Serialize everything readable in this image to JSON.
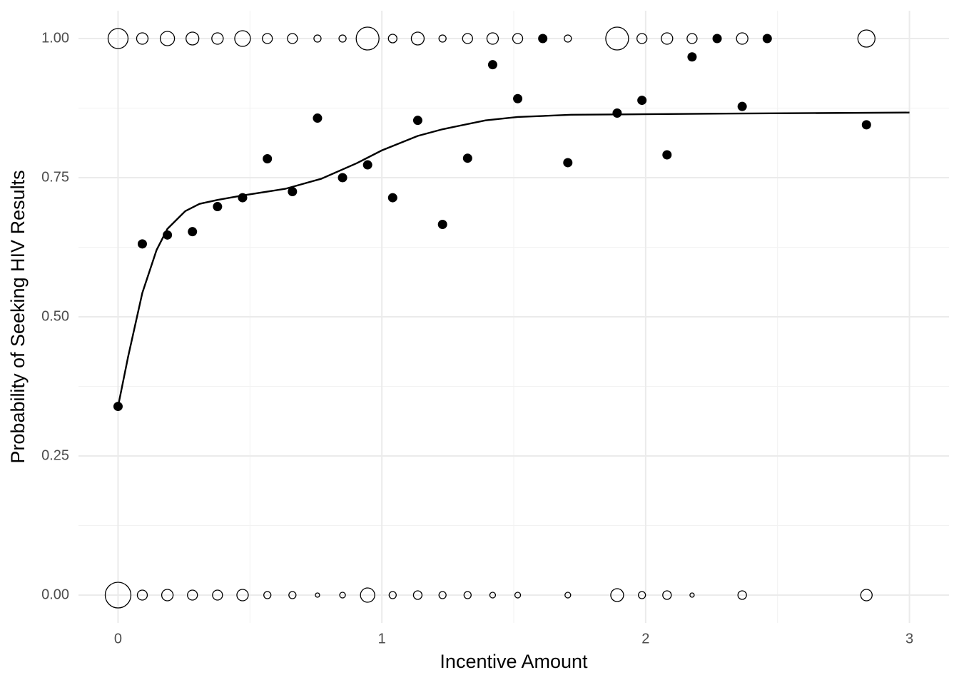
{
  "chart_data": {
    "type": "scatter",
    "x_label": "Incentive Amount",
    "y_label": "Probability of Seeking HIV Results",
    "xlim": [
      -0.15,
      3.15
    ],
    "ylim": [
      -0.05,
      1.05
    ],
    "xticks": [
      0,
      1,
      2,
      3
    ],
    "yticks": [
      {
        "value": 0,
        "label": "0.00"
      },
      {
        "value": 0.25,
        "label": "0.25"
      },
      {
        "value": 0.5,
        "label": "0.50"
      },
      {
        "value": 0.75,
        "label": "0.75"
      },
      {
        "value": 1,
        "label": "1.00"
      }
    ],
    "minor_xticks": [
      0.5,
      1.5,
      2.5
    ],
    "minor_yticks": [
      0.125,
      0.375,
      0.625,
      0.875
    ],
    "grid": true,
    "x": [
      0,
      0.092,
      0.187,
      0.282,
      0.377,
      0.472,
      0.566,
      0.661,
      0.756,
      0.851,
      0.946,
      1.041,
      1.136,
      1.23,
      1.325,
      1.42,
      1.515,
      1.61,
      1.705,
      1.892,
      1.986,
      2.081,
      2.176,
      2.271,
      2.366,
      2.461,
      2.837
    ],
    "values": [
      0.339,
      0.631,
      0.647,
      0.653,
      0.698,
      0.714,
      0.784,
      0.725,
      0.857,
      0.75,
      0.773,
      0.714,
      0.853,
      0.666,
      0.785,
      0.953,
      0.892,
      1,
      0.777,
      0.866,
      0.889,
      0.791,
      0.967,
      1,
      0.878,
      1,
      0.845
    ],
    "color": "#000000",
    "responses": [
      {
        "y": 1,
        "sizes": [
          14,
          8,
          10,
          9,
          8,
          11,
          7,
          7,
          5,
          5,
          16,
          6,
          9,
          5,
          7,
          8,
          7,
          null,
          5,
          16,
          7,
          8,
          7,
          null,
          8,
          null,
          12
        ]
      },
      {
        "y": 0,
        "sizes": [
          18,
          7,
          8,
          7,
          7,
          8,
          5,
          5,
          3,
          4,
          10,
          5,
          6,
          5,
          5,
          4,
          4,
          null,
          4,
          9,
          5,
          6,
          3,
          null,
          6,
          null,
          8
        ]
      }
    ],
    "fit": {
      "x": [
        0,
        0.038,
        0.092,
        0.146,
        0.187,
        0.255,
        0.309,
        0.377,
        0.472,
        0.634,
        0.77,
        0.905,
        1,
        1.136,
        1.23,
        1.393,
        1.515,
        1.718,
        1.989,
        2.26,
        3
      ],
      "values": [
        0.339,
        0.428,
        0.543,
        0.62,
        0.658,
        0.69,
        0.703,
        0.71,
        0.718,
        0.73,
        0.748,
        0.776,
        0.799,
        0.825,
        0.837,
        0.853,
        0.859,
        0.863,
        0.864,
        0.865,
        0.867
      ],
      "color": "#000000"
    }
  }
}
